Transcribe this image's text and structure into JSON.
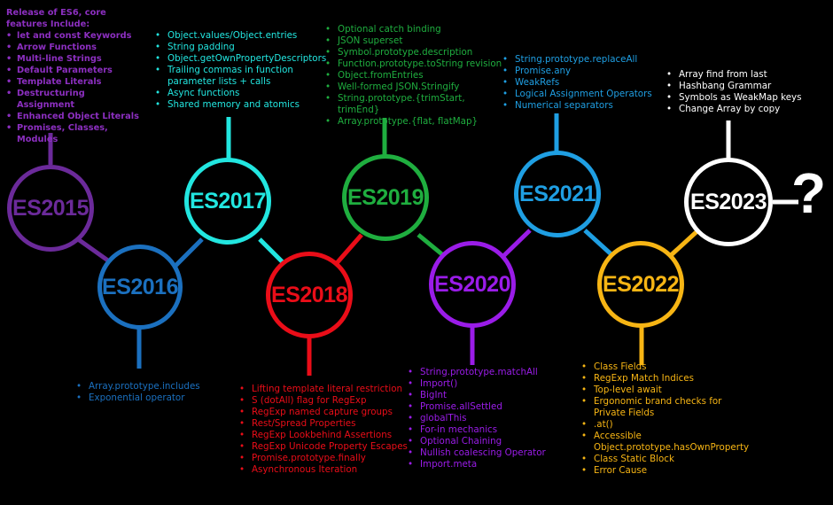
{
  "colors": {
    "es2015": "#6b2a9a",
    "es2016": "#1b70bf",
    "es2017": "#22e6e0",
    "es2018": "#ea0d18",
    "es2019": "#1fae3f",
    "es2020": "#9a1ce8",
    "es2021": "#1f9fe3",
    "es2022": "#f7b514",
    "es2023": "#ffffff"
  },
  "question_mark": "?",
  "es2015": {
    "label": "ES2015",
    "intro": "Release of ES6, core features Include:",
    "features": [
      "let and const Keywords",
      "Arrow Functions",
      "Multi-line Strings",
      "Default Parameters",
      "Template Literals",
      "Destructuring Assignment",
      "Enhanced Object Literals",
      "Promises, Classes, Modules"
    ]
  },
  "es2016": {
    "label": "ES2016",
    "features": [
      "Array.prototype.includes",
      "Exponential operator"
    ]
  },
  "es2017": {
    "label": "ES2017",
    "features": [
      "Object.values/Object.entries",
      "String padding",
      "Object.getOwnPropertyDescriptors",
      "Trailing commas in function parameter lists + calls",
      "Async functions",
      "Shared memory and atomics"
    ]
  },
  "es2018": {
    "label": "ES2018",
    "features": [
      "Lifting template literal restriction",
      "S (dotAll) flag for RegExp",
      "RegExp named capture groups",
      "Rest/Spread Properties",
      "RegExp Lookbehind Assertions",
      "RegExp Unicode Property Escapes",
      "Promise.prototype.finally",
      "Asynchronous Iteration"
    ]
  },
  "es2019": {
    "label": "ES2019",
    "features": [
      "Optional catch binding",
      "JSON superset",
      "Symbol.prototype.description",
      "Function.prototype.toString revision",
      "Object.fromEntries",
      "Well-formed JSON.Stringify",
      "String.prototype.{trimStart, trimEnd}",
      "Array.prototype.{flat, flatMap}"
    ]
  },
  "es2020": {
    "label": "ES2020",
    "features": [
      "String.prototype.matchAll",
      "Import()",
      "BigInt",
      "Promise.allSettled",
      "globalThis",
      "For-in mechanics",
      "Optional Chaining",
      "Nullish coalescing Operator",
      "Import.meta"
    ]
  },
  "es2021": {
    "label": "ES2021",
    "features": [
      "String.prototype.replaceAll",
      "Promise.any",
      "WeakRefs",
      "Logical Assignment Operators",
      "Numerical separators"
    ]
  },
  "es2022": {
    "label": "ES2022",
    "features": [
      "Class Fields",
      "RegExp Match Indices",
      "Top-level await",
      "Ergonomic brand checks for Private Fields",
      ".at()",
      "Accessible Object.prototype.hasOwnProperty",
      "Class Static Block",
      "Error Cause"
    ]
  },
  "es2023": {
    "label": "ES2023",
    "features": [
      "Array find from last",
      "Hashbang Grammar",
      "Symbols as WeakMap keys",
      "Change Array by copy"
    ]
  }
}
